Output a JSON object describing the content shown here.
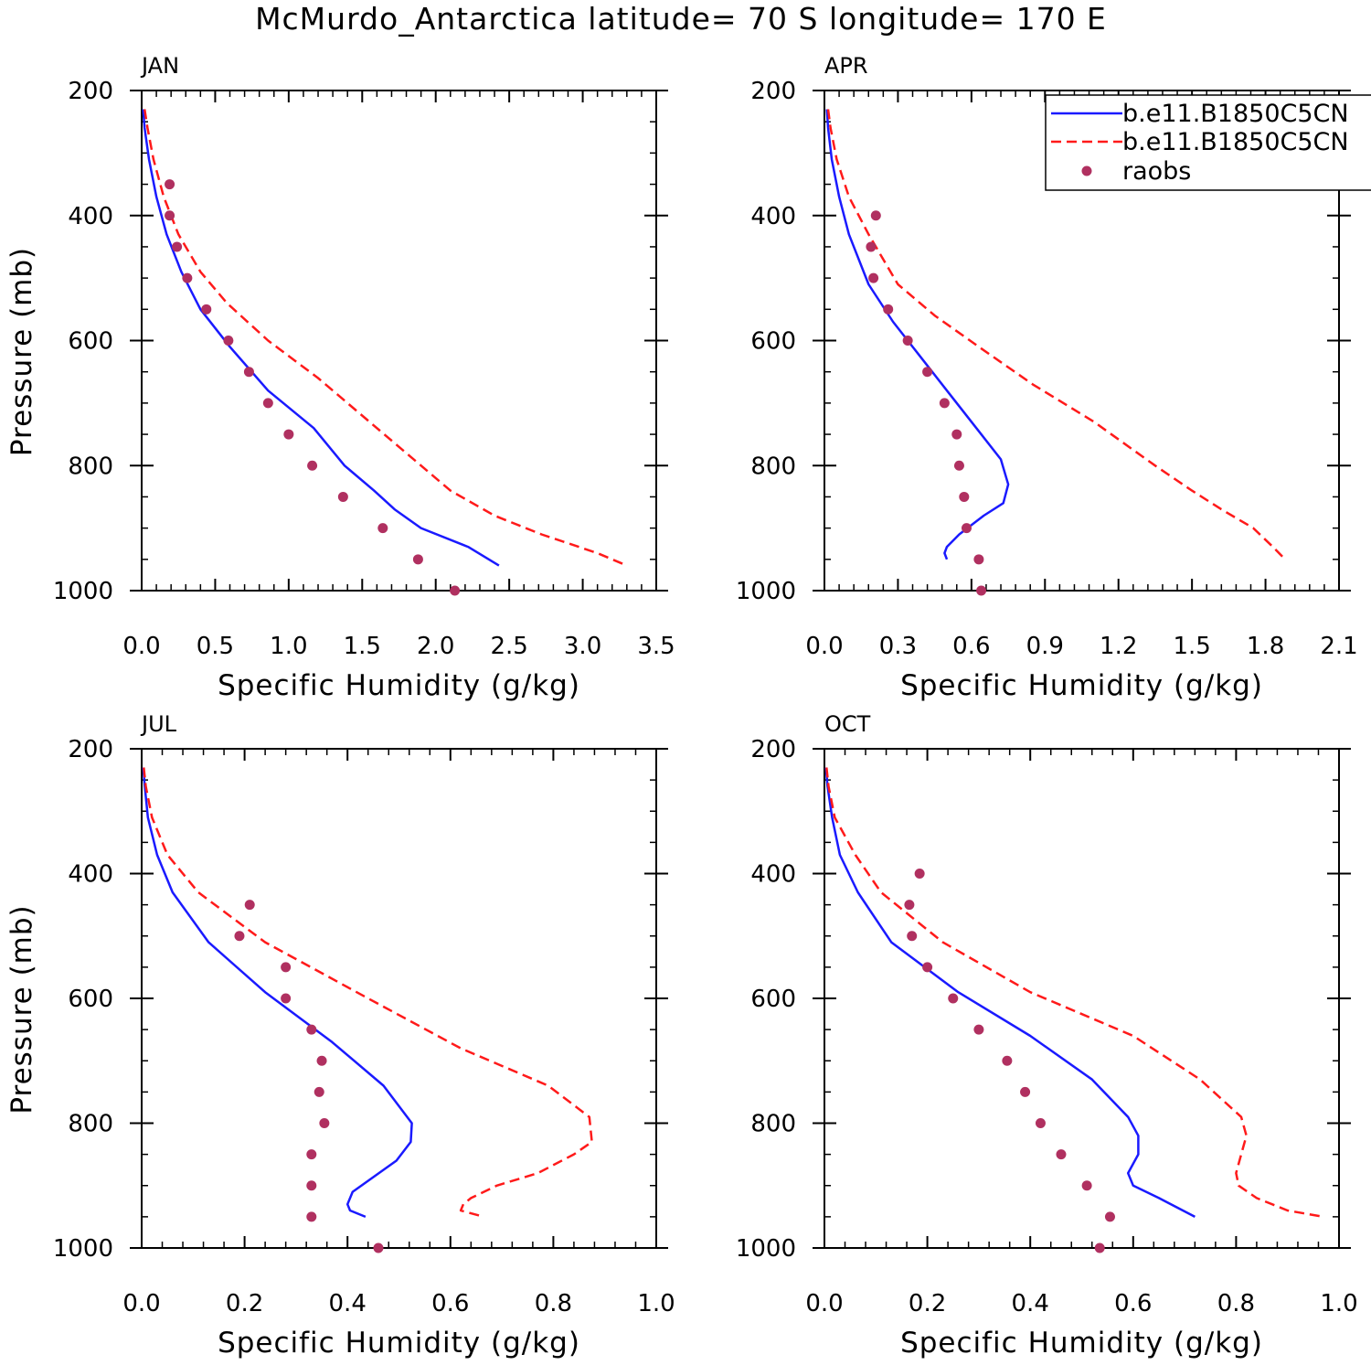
{
  "figure_title": "McMurdo_Antarctica  latitude= 70 S longitude= 170 E",
  "colors": {
    "model1": "#1a1aff",
    "model2": "#ff1a1a",
    "raobs": "#b03060",
    "axis": "#000000"
  },
  "legend": {
    "entries": [
      {
        "label": "b.e11.B1850C5CN",
        "style": "solid",
        "color": "#1a1aff"
      },
      {
        "label": "b.e11.B1850C5CN",
        "style": "dashed",
        "color": "#ff1a1a"
      },
      {
        "label": "raobs",
        "style": "dot",
        "color": "#b03060"
      }
    ]
  },
  "chart_data": [
    {
      "type": "line",
      "panel": "JAN",
      "xlabel": "Specific Humidity (g/kg)",
      "ylabel": "Pressure (mb)",
      "xlim": [
        0,
        3.5
      ],
      "xticks": [
        0,
        0.5,
        1.0,
        1.5,
        2.0,
        2.5,
        3.0,
        3.5
      ],
      "xtick_labels": [
        "0.0",
        "0.5",
        "1.0",
        "1.5",
        "2.0",
        "2.5",
        "3.0",
        "3.5"
      ],
      "ylim": [
        1000,
        200
      ],
      "yticks": [
        200,
        400,
        600,
        800,
        1000
      ],
      "ytick_labels": [
        "200",
        "400",
        "600",
        "800",
        "1000"
      ],
      "series": [
        {
          "name": "b.e11.B1850C5CN",
          "style": "solid",
          "x": [
            0.01,
            0.02,
            0.05,
            0.1,
            0.17,
            0.27,
            0.4,
            0.6,
            0.86,
            1.17,
            1.38,
            1.58,
            1.72,
            1.9,
            2.22,
            2.43
          ],
          "y": [
            230,
            260,
            310,
            370,
            430,
            490,
            550,
            610,
            680,
            740,
            800,
            840,
            870,
            900,
            930,
            960
          ]
        },
        {
          "name": "b.e11.B1850C5CN",
          "style": "dashed",
          "x": [
            0.02,
            0.04,
            0.08,
            0.15,
            0.25,
            0.4,
            0.58,
            0.86,
            1.2,
            1.55,
            1.85,
            2.1,
            2.4,
            2.72,
            3.1,
            3.3
          ],
          "y": [
            230,
            260,
            310,
            370,
            430,
            490,
            540,
            600,
            660,
            730,
            790,
            840,
            880,
            910,
            940,
            960
          ]
        },
        {
          "name": "raobs",
          "style": "dot",
          "x": [
            0.19,
            0.19,
            0.24,
            0.31,
            0.44,
            0.59,
            0.73,
            0.86,
            1.0,
            1.16,
            1.37,
            1.64,
            1.88,
            2.13
          ],
          "y": [
            350,
            400,
            450,
            500,
            550,
            600,
            650,
            700,
            750,
            800,
            850,
            900,
            950,
            1000
          ]
        }
      ]
    },
    {
      "type": "line",
      "panel": "APR",
      "xlabel": "Specific Humidity (g/kg)",
      "ylabel": "",
      "xlim": [
        0,
        2.1
      ],
      "xticks": [
        0,
        0.3,
        0.6,
        0.9,
        1.2,
        1.5,
        1.8,
        2.1
      ],
      "xtick_labels": [
        "0.0",
        "0.3",
        "0.6",
        "0.9",
        "1.2",
        "1.5",
        "1.8",
        "2.1"
      ],
      "ylim": [
        1000,
        200
      ],
      "yticks": [
        200,
        400,
        600,
        800,
        1000
      ],
      "ytick_labels": [
        "200",
        "400",
        "600",
        "800",
        "1000"
      ],
      "series": [
        {
          "name": "b.e11.B1850C5CN",
          "style": "solid",
          "x": [
            0.01,
            0.015,
            0.03,
            0.06,
            0.1,
            0.18,
            0.28,
            0.38,
            0.5,
            0.62,
            0.72,
            0.75,
            0.73,
            0.65,
            0.55,
            0.5,
            0.49,
            0.5
          ],
          "y": [
            230,
            260,
            310,
            370,
            430,
            510,
            570,
            620,
            680,
            740,
            790,
            830,
            860,
            880,
            910,
            930,
            940,
            950
          ]
        },
        {
          "name": "b.e11.B1850C5CN",
          "style": "dashed",
          "x": [
            0.015,
            0.025,
            0.05,
            0.1,
            0.18,
            0.3,
            0.45,
            0.63,
            0.85,
            1.1,
            1.35,
            1.5,
            1.62,
            1.75,
            1.83,
            1.88
          ],
          "y": [
            230,
            260,
            310,
            370,
            430,
            510,
            560,
            610,
            670,
            730,
            800,
            840,
            870,
            900,
            930,
            950
          ]
        },
        {
          "name": "raobs",
          "style": "dot",
          "x": [
            0.21,
            0.19,
            0.2,
            0.26,
            0.34,
            0.42,
            0.49,
            0.54,
            0.55,
            0.57,
            0.58,
            0.63,
            0.64
          ],
          "y": [
            400,
            450,
            500,
            550,
            600,
            650,
            700,
            750,
            800,
            850,
            900,
            950,
            1000
          ]
        }
      ]
    },
    {
      "type": "line",
      "panel": "JUL",
      "xlabel": "Specific Humidity (g/kg)",
      "ylabel": "Pressure (mb)",
      "xlim": [
        0,
        1.0
      ],
      "xticks": [
        0,
        0.2,
        0.4,
        0.6,
        0.8,
        1.0
      ],
      "xtick_labels": [
        "0.0",
        "0.2",
        "0.4",
        "0.6",
        "0.8",
        "1.0"
      ],
      "ylim": [
        1000,
        200
      ],
      "yticks": [
        200,
        400,
        600,
        800,
        1000
      ],
      "ytick_labels": [
        "200",
        "400",
        "600",
        "800",
        "1000"
      ],
      "series": [
        {
          "name": "b.e11.B1850C5CN",
          "style": "solid",
          "x": [
            0.003,
            0.006,
            0.012,
            0.03,
            0.06,
            0.13,
            0.24,
            0.37,
            0.47,
            0.525,
            0.523,
            0.495,
            0.41,
            0.4,
            0.405,
            0.435
          ],
          "y": [
            230,
            260,
            310,
            370,
            430,
            510,
            590,
            670,
            740,
            800,
            830,
            860,
            910,
            930,
            940,
            950
          ]
        },
        {
          "name": "b.e11.B1850C5CN",
          "style": "dashed",
          "x": [
            0.004,
            0.008,
            0.02,
            0.05,
            0.11,
            0.24,
            0.44,
            0.62,
            0.79,
            0.87,
            0.875,
            0.84,
            0.77,
            0.69,
            0.64,
            0.625,
            0.62,
            0.665
          ],
          "y": [
            230,
            260,
            310,
            370,
            430,
            510,
            600,
            680,
            740,
            790,
            830,
            850,
            880,
            900,
            920,
            930,
            940,
            950
          ]
        },
        {
          "name": "raobs",
          "style": "dot",
          "x": [
            0.21,
            0.19,
            0.28,
            0.28,
            0.33,
            0.35,
            0.345,
            0.355,
            0.33,
            0.33,
            0.33,
            0.46
          ],
          "y": [
            450,
            500,
            550,
            600,
            650,
            700,
            750,
            800,
            850,
            900,
            950,
            1000
          ]
        }
      ]
    },
    {
      "type": "line",
      "panel": "OCT",
      "xlabel": "Specific Humidity (g/kg)",
      "ylabel": "",
      "xlim": [
        0,
        1.0
      ],
      "xticks": [
        0,
        0.2,
        0.4,
        0.6,
        0.8,
        1.0
      ],
      "xtick_labels": [
        "0.0",
        "0.2",
        "0.4",
        "0.6",
        "0.8",
        "1.0"
      ],
      "ylim": [
        1000,
        200
      ],
      "yticks": [
        200,
        400,
        600,
        800,
        1000
      ],
      "ytick_labels": [
        "200",
        "400",
        "600",
        "800",
        "1000"
      ],
      "series": [
        {
          "name": "b.e11.B1850C5CN",
          "style": "solid",
          "x": [
            0.003,
            0.006,
            0.015,
            0.03,
            0.065,
            0.13,
            0.26,
            0.4,
            0.52,
            0.59,
            0.61,
            0.61,
            0.59,
            0.6,
            0.65,
            0.72
          ],
          "y": [
            230,
            260,
            310,
            370,
            430,
            510,
            590,
            660,
            730,
            790,
            820,
            850,
            880,
            900,
            920,
            950
          ]
        },
        {
          "name": "b.e11.B1850C5CN",
          "style": "dashed",
          "x": [
            0.004,
            0.008,
            0.02,
            0.06,
            0.11,
            0.23,
            0.4,
            0.6,
            0.73,
            0.81,
            0.82,
            0.81,
            0.8,
            0.805,
            0.84,
            0.9,
            0.97
          ],
          "y": [
            230,
            260,
            310,
            370,
            430,
            510,
            590,
            660,
            730,
            790,
            820,
            850,
            880,
            900,
            920,
            940,
            950
          ]
        },
        {
          "name": "raobs",
          "style": "dot",
          "x": [
            0.185,
            0.165,
            0.17,
            0.2,
            0.25,
            0.3,
            0.355,
            0.39,
            0.42,
            0.46,
            0.51,
            0.555,
            0.535
          ],
          "y": [
            400,
            450,
            500,
            550,
            600,
            650,
            700,
            750,
            800,
            850,
            900,
            950,
            1000
          ]
        }
      ]
    }
  ]
}
